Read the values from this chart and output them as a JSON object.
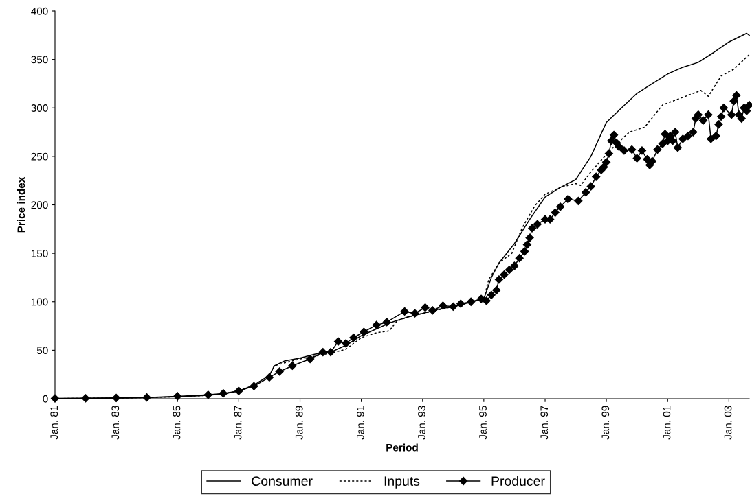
{
  "chart_data": {
    "type": "line",
    "xlabel": "Period",
    "ylabel": "Price index",
    "ylim": [
      0,
      400
    ],
    "yticks": [
      0,
      50,
      100,
      150,
      200,
      250,
      300,
      350,
      400
    ],
    "xlim": [
      "1981-01",
      "2003-09"
    ],
    "xticks": [
      {
        "value": "1981-01",
        "label": "Jan. 81"
      },
      {
        "value": "1983-01",
        "label": "Jan. 83"
      },
      {
        "value": "1985-01",
        "label": "Jan. 85"
      },
      {
        "value": "1987-01",
        "label": "Jan. 87"
      },
      {
        "value": "1989-01",
        "label": "Jan. 89"
      },
      {
        "value": "1991-01",
        "label": "Jan. 91"
      },
      {
        "value": "1993-01",
        "label": "Jan. 93"
      },
      {
        "value": "1995-01",
        "label": "Jan. 95"
      },
      {
        "value": "1997-01",
        "label": "Jan. 97"
      },
      {
        "value": "1999-01",
        "label": "Jan. 99"
      },
      {
        "value": "2001-01",
        "label": "Jan. 01"
      },
      {
        "value": "2003-01",
        "label": "Jan. 03"
      }
    ],
    "grid": false,
    "legend": "bottom",
    "series": [
      {
        "name": "Consumer",
        "color": "#000000",
        "line_style": "solid",
        "marker": "none",
        "x": [
          "1981-01",
          "1982-01",
          "1983-01",
          "1984-01",
          "1985-01",
          "1986-01",
          "1986-07",
          "1987-01",
          "1987-07",
          "1988-01",
          "1988-03",
          "1988-07",
          "1989-01",
          "1989-07",
          "1990-01",
          "1990-07",
          "1991-01",
          "1991-07",
          "1992-01",
          "1992-07",
          "1993-01",
          "1993-07",
          "1994-01",
          "1994-07",
          "1995-01",
          "1995-04",
          "1995-07",
          "1996-01",
          "1996-07",
          "1997-01",
          "1997-07",
          "1998-01",
          "1998-07",
          "1999-01",
          "1999-07",
          "2000-01",
          "2000-07",
          "2001-01",
          "2001-07",
          "2002-01",
          "2002-07",
          "2003-01",
          "2003-08",
          "2003-09"
        ],
        "values": [
          0.2,
          0.4,
          0.7,
          1.2,
          2,
          3.5,
          5,
          8,
          14,
          24,
          34,
          39,
          42,
          46,
          48,
          55,
          65,
          72,
          79,
          84,
          88,
          92,
          95,
          99,
          103,
          125,
          140,
          160,
          185,
          208,
          218,
          226,
          250,
          285,
          300,
          315,
          325,
          335,
          342,
          347,
          357,
          368,
          377,
          375
        ]
      },
      {
        "name": "Inputs",
        "color": "#000000",
        "line_style": "dotted",
        "marker": "none",
        "x": [
          "1981-01",
          "1982-01",
          "1983-01",
          "1984-01",
          "1985-01",
          "1986-01",
          "1986-07",
          "1987-01",
          "1987-07",
          "1988-01",
          "1988-03",
          "1988-07",
          "1989-01",
          "1989-07",
          "1990-01",
          "1990-07",
          "1991-01",
          "1991-07",
          "1991-12",
          "1992-03",
          "1992-07",
          "1993-01",
          "1994-01",
          "1995-01",
          "1995-03",
          "1995-07",
          "1995-12",
          "1996-04",
          "1996-09",
          "1997-01",
          "1997-07",
          "1998-01",
          "1998-03",
          "1998-07",
          "1999-01",
          "1999-04",
          "1999-10",
          "2000-04",
          "2000-11",
          "2001-06",
          "2002-02",
          "2002-05",
          "2002-10",
          "2003-03",
          "2003-09"
        ],
        "values": [
          0.2,
          0.4,
          0.7,
          1.2,
          2,
          3.5,
          5,
          8,
          14,
          24,
          34,
          37,
          41,
          44,
          47,
          51,
          63,
          68,
          70,
          80,
          84,
          88,
          95,
          103,
          123,
          140,
          150,
          176,
          199,
          211,
          218,
          222,
          220,
          234,
          252,
          260,
          275,
          280,
          303,
          310,
          318,
          312,
          333,
          340,
          355
        ]
      },
      {
        "name": "Producer",
        "color": "#000000",
        "line_style": "solid",
        "marker": "diamond",
        "x": [
          "1981-01",
          "1982-01",
          "1983-01",
          "1984-01",
          "1985-01",
          "1986-01",
          "1986-07",
          "1987-01",
          "1987-07",
          "1988-01",
          "1988-05",
          "1988-10",
          "1989-05",
          "1989-10",
          "1990-01",
          "1990-04",
          "1990-07",
          "1990-10",
          "1991-02",
          "1991-07",
          "1991-11",
          "1992-06",
          "1992-10",
          "1993-02",
          "1993-05",
          "1993-09",
          "1994-01",
          "1994-04",
          "1994-08",
          "1994-12",
          "1995-02",
          "1995-04",
          "1995-06",
          "1995-07",
          "1995-09",
          "1995-11",
          "1996-01",
          "1996-03",
          "1996-05",
          "1996-06",
          "1996-07",
          "1996-08",
          "1996-10",
          "1997-01",
          "1997-03",
          "1997-05",
          "1997-07",
          "1997-10",
          "1998-02",
          "1998-05",
          "1998-07",
          "1998-09",
          "1998-11",
          "1998-12",
          "1999-01",
          "1999-02",
          "1999-03",
          "1999-04",
          "1999-05",
          "1999-06",
          "1999-08",
          "1999-11",
          "2000-01",
          "2000-03",
          "2000-05",
          "2000-06",
          "2000-07",
          "2000-09",
          "2000-11",
          "2000-12",
          "2001-01",
          "2001-02",
          "2001-03",
          "2001-04",
          "2001-05",
          "2001-07",
          "2001-09",
          "2001-11",
          "2001-12",
          "2002-01",
          "2002-03",
          "2002-05",
          "2002-06",
          "2002-08",
          "2002-09",
          "2002-10",
          "2002-11",
          "2003-02",
          "2003-03",
          "2003-04",
          "2003-05",
          "2003-06",
          "2003-07",
          "2003-08",
          "2003-09"
        ],
        "values": [
          0.3,
          0.5,
          0.8,
          1.3,
          2.5,
          4,
          5.5,
          8,
          13,
          22,
          28,
          34,
          41,
          48,
          48,
          59,
          57,
          63,
          69,
          76,
          79,
          90,
          88,
          94,
          91,
          96,
          95,
          98,
          100,
          103,
          101,
          107,
          112,
          123,
          128,
          133,
          137,
          145,
          152,
          159,
          166,
          176,
          180,
          185,
          185,
          192,
          198,
          206,
          204,
          213,
          219,
          229,
          236,
          239,
          244,
          253,
          266,
          272,
          264,
          260,
          256,
          257,
          248,
          256,
          247,
          241,
          245,
          257,
          263,
          273,
          266,
          271,
          266,
          275,
          259,
          268,
          271,
          275,
          289,
          293,
          287,
          293,
          268,
          271,
          283,
          291,
          300,
          293,
          307,
          313,
          293,
          289,
          300,
          297,
          303
        ]
      }
    ]
  }
}
